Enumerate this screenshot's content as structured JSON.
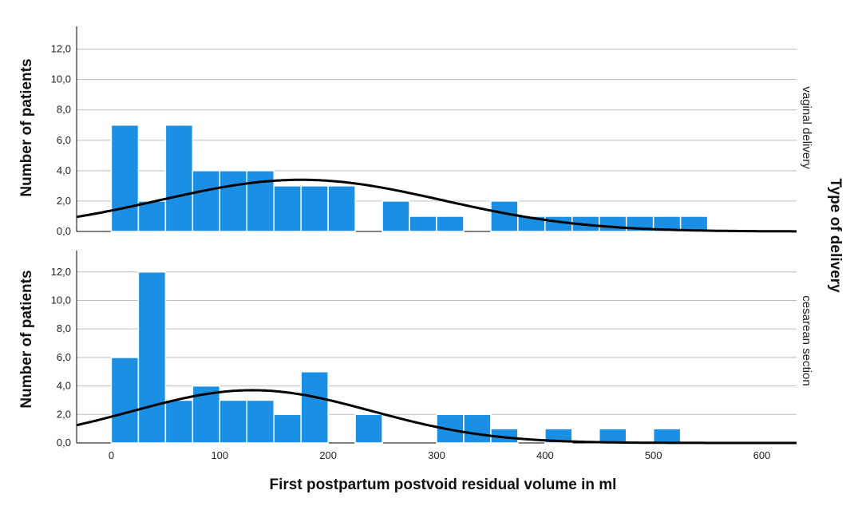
{
  "chart_data": {
    "type": "bar",
    "xlabel": "First postpartum postvoid residual volume in ml",
    "ylabel": "Number of patients",
    "facet_label": "Type of delivery",
    "xlim": [
      -32,
      632
    ],
    "ylim": [
      0,
      13.5
    ],
    "x_ticks": [
      0,
      100,
      200,
      300,
      400,
      500,
      600
    ],
    "y_ticks": [
      "0,0",
      "2,0",
      "4,0",
      "6,0",
      "8,0",
      "10,0",
      "12,0"
    ],
    "bin_width": 25,
    "grid": true,
    "colors": {
      "bar": "#1a8fe3",
      "bar_edge": "#ffffff",
      "curve": "#000000",
      "grid": "#bdbdbd"
    },
    "panels": [
      {
        "name": "vaginal delivery",
        "bins": [
          {
            "start": 0,
            "count": 7
          },
          {
            "start": 25,
            "count": 2
          },
          {
            "start": 50,
            "count": 7
          },
          {
            "start": 75,
            "count": 4
          },
          {
            "start": 100,
            "count": 4
          },
          {
            "start": 125,
            "count": 4
          },
          {
            "start": 150,
            "count": 3
          },
          {
            "start": 175,
            "count": 3
          },
          {
            "start": 200,
            "count": 3
          },
          {
            "start": 250,
            "count": 2
          },
          {
            "start": 275,
            "count": 1
          },
          {
            "start": 300,
            "count": 1
          },
          {
            "start": 350,
            "count": 2
          },
          {
            "start": 375,
            "count": 1
          },
          {
            "start": 400,
            "count": 1
          },
          {
            "start": 425,
            "count": 1
          },
          {
            "start": 450,
            "count": 1
          },
          {
            "start": 475,
            "count": 1
          },
          {
            "start": 500,
            "count": 1
          },
          {
            "start": 525,
            "count": 1
          }
        ],
        "normal_curve": {
          "mean": 175,
          "sd": 130,
          "peak": 3.4
        }
      },
      {
        "name": "cesarean section",
        "bins": [
          {
            "start": 0,
            "count": 6
          },
          {
            "start": 25,
            "count": 12
          },
          {
            "start": 50,
            "count": 3
          },
          {
            "start": 75,
            "count": 4
          },
          {
            "start": 100,
            "count": 3
          },
          {
            "start": 125,
            "count": 3
          },
          {
            "start": 150,
            "count": 2
          },
          {
            "start": 175,
            "count": 5
          },
          {
            "start": 225,
            "count": 2
          },
          {
            "start": 300,
            "count": 2
          },
          {
            "start": 325,
            "count": 2
          },
          {
            "start": 350,
            "count": 1
          },
          {
            "start": 400,
            "count": 1
          },
          {
            "start": 450,
            "count": 1
          },
          {
            "start": 500,
            "count": 1
          }
        ],
        "normal_curve": {
          "mean": 130,
          "sd": 110,
          "peak": 3.7
        }
      }
    ]
  }
}
